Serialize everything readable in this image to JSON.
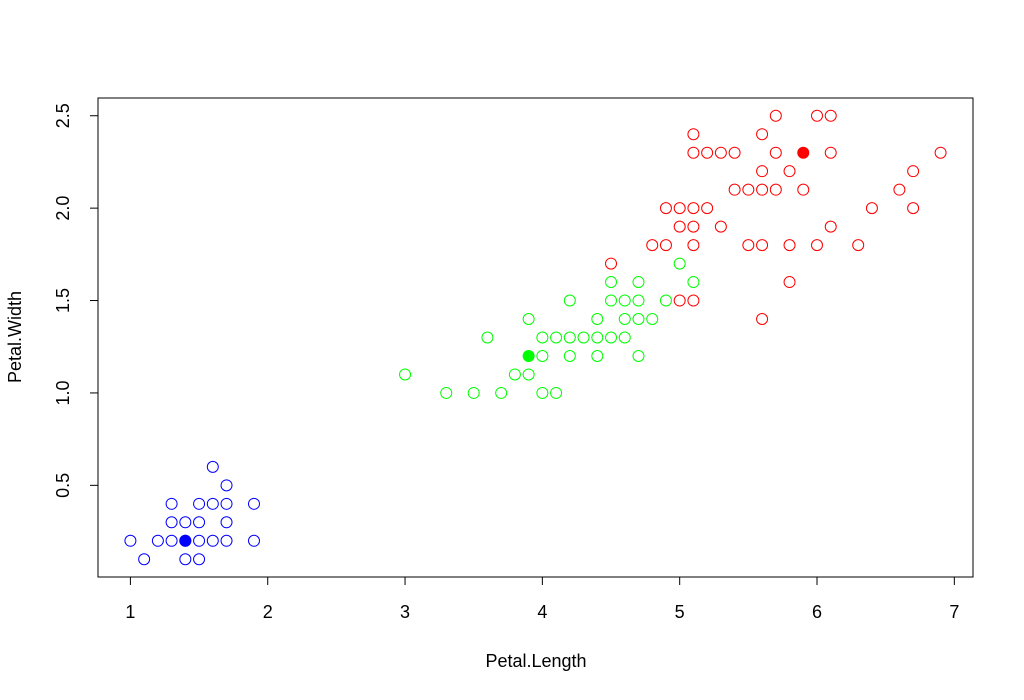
{
  "chart_data": {
    "type": "scatter",
    "x_label": "Petal.Length",
    "y_label": "Petal.Width",
    "xlim": [
      0.764,
      7.136
    ],
    "ylim": [
      0.004,
      2.596
    ],
    "xticks": [
      1,
      2,
      3,
      4,
      5,
      6,
      7
    ],
    "yticks": [
      0.5,
      {
        "value": 1,
        "label": "1.0"
      },
      1.5,
      {
        "value": 2,
        "label": "2.0"
      },
      2.5
    ],
    "series": [
      {
        "color": "#0000ff",
        "filled": false,
        "x": [
          1.0,
          1.1,
          1.2,
          1.3,
          1.3,
          1.3,
          1.4,
          1.4,
          1.4,
          1.5,
          1.5,
          1.5,
          1.5,
          1.6,
          1.6,
          1.6,
          1.7,
          1.7,
          1.7,
          1.7,
          1.9,
          1.9
        ],
        "values": [
          0.2,
          0.1,
          0.2,
          0.2,
          0.3,
          0.4,
          0.1,
          0.2,
          0.3,
          0.1,
          0.2,
          0.3,
          0.4,
          0.2,
          0.4,
          0.6,
          0.2,
          0.3,
          0.4,
          0.5,
          0.2,
          0.4
        ]
      },
      {
        "color": "#00ff00",
        "filled": false,
        "x": [
          3.0,
          3.3,
          3.5,
          3.6,
          3.7,
          3.8,
          3.9,
          3.9,
          4.0,
          4.0,
          4.0,
          4.1,
          4.1,
          4.2,
          4.2,
          4.2,
          4.3,
          4.4,
          4.4,
          4.4,
          4.5,
          4.5,
          4.5,
          4.6,
          4.6,
          4.6,
          4.7,
          4.7,
          4.7,
          4.7,
          4.8,
          4.9,
          5.0,
          5.1
        ],
        "values": [
          1.1,
          1.0,
          1.0,
          1.3,
          1.0,
          1.1,
          1.1,
          1.4,
          1.0,
          1.2,
          1.3,
          1.0,
          1.3,
          1.2,
          1.3,
          1.5,
          1.3,
          1.2,
          1.3,
          1.4,
          1.3,
          1.5,
          1.6,
          1.3,
          1.4,
          1.5,
          1.2,
          1.4,
          1.5,
          1.6,
          1.4,
          1.5,
          1.7,
          1.6
        ]
      },
      {
        "color": "#ff0000",
        "filled": false,
        "x": [
          4.5,
          4.8,
          4.9,
          4.9,
          5.0,
          5.0,
          5.0,
          5.1,
          5.1,
          5.1,
          5.1,
          5.1,
          5.1,
          5.2,
          5.2,
          5.3,
          5.3,
          5.4,
          5.4,
          5.5,
          5.5,
          5.6,
          5.6,
          5.6,
          5.6,
          5.6,
          5.7,
          5.7,
          5.7,
          5.8,
          5.8,
          5.8,
          5.9,
          6.0,
          6.0,
          6.1,
          6.1,
          6.1,
          6.3,
          6.4,
          6.6,
          6.7,
          6.7,
          6.9
        ],
        "values": [
          1.7,
          1.8,
          1.8,
          2.0,
          1.5,
          1.9,
          2.0,
          1.5,
          1.8,
          1.9,
          2.0,
          2.3,
          2.4,
          2.0,
          2.3,
          1.9,
          2.3,
          2.1,
          2.3,
          1.8,
          2.1,
          1.4,
          1.8,
          2.1,
          2.2,
          2.4,
          2.1,
          2.3,
          2.5,
          1.6,
          1.8,
          2.2,
          2.1,
          1.8,
          2.5,
          1.9,
          2.3,
          2.5,
          1.8,
          2.0,
          2.1,
          2.0,
          2.2,
          2.3
        ]
      },
      {
        "color": "#0000ff",
        "filled": true,
        "x": [
          1.4
        ],
        "values": [
          0.2
        ]
      },
      {
        "color": "#00ff00",
        "filled": true,
        "x": [
          3.9
        ],
        "values": [
          1.2
        ]
      },
      {
        "color": "#ff0000",
        "filled": true,
        "x": [
          5.9
        ],
        "values": [
          2.3
        ]
      }
    ]
  }
}
